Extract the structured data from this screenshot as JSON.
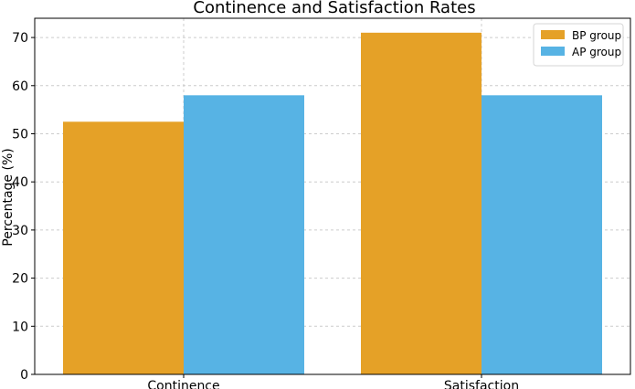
{
  "chart_data": {
    "type": "bar",
    "title": "Continence and Satisfaction Rates",
    "xlabel": "",
    "ylabel": "Percentage (%)",
    "categories": [
      "Continence",
      "Satisfaction"
    ],
    "series": [
      {
        "name": "BP group",
        "values": [
          52.5,
          71
        ],
        "color": "#E5A127"
      },
      {
        "name": "AP group",
        "values": [
          58,
          58
        ],
        "color": "#57B3E4"
      }
    ],
    "ylim": [
      0,
      74
    ],
    "yticks": [
      0,
      10,
      20,
      30,
      40,
      50,
      60,
      70
    ],
    "grid": true,
    "legend_position": "top-right"
  }
}
